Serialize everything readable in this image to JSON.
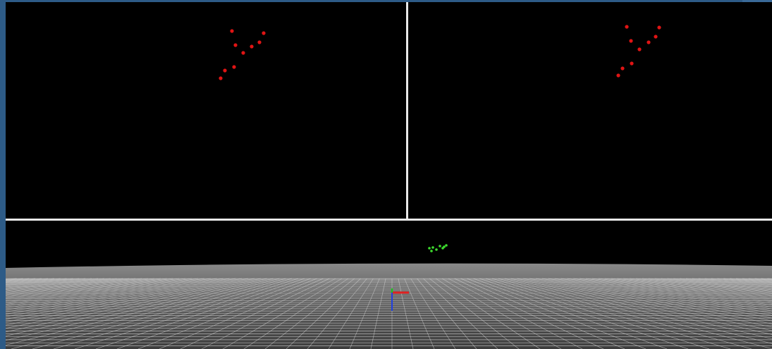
{
  "colors": {
    "background": "#2d5b87",
    "viewport": "#000000",
    "divider": "#e9e9e9",
    "marker_2d": "#e01414",
    "marker_3d": "#3ddc2e",
    "floor": "#7a7a7a",
    "grid_line": "#d8d8d8",
    "axis_x": "#e02020",
    "axis_y": "#20c020",
    "axis_z": "#2040e0"
  },
  "views": {
    "left_camera": {
      "icon": "camera-view",
      "marker_count": 8
    },
    "right_camera": {
      "icon": "camera-view",
      "marker_count": 8
    },
    "scene_3d": {
      "icon": "perspective-view",
      "marker_count": 8,
      "floor_grid": true,
      "axes_gizmo": true
    }
  }
}
